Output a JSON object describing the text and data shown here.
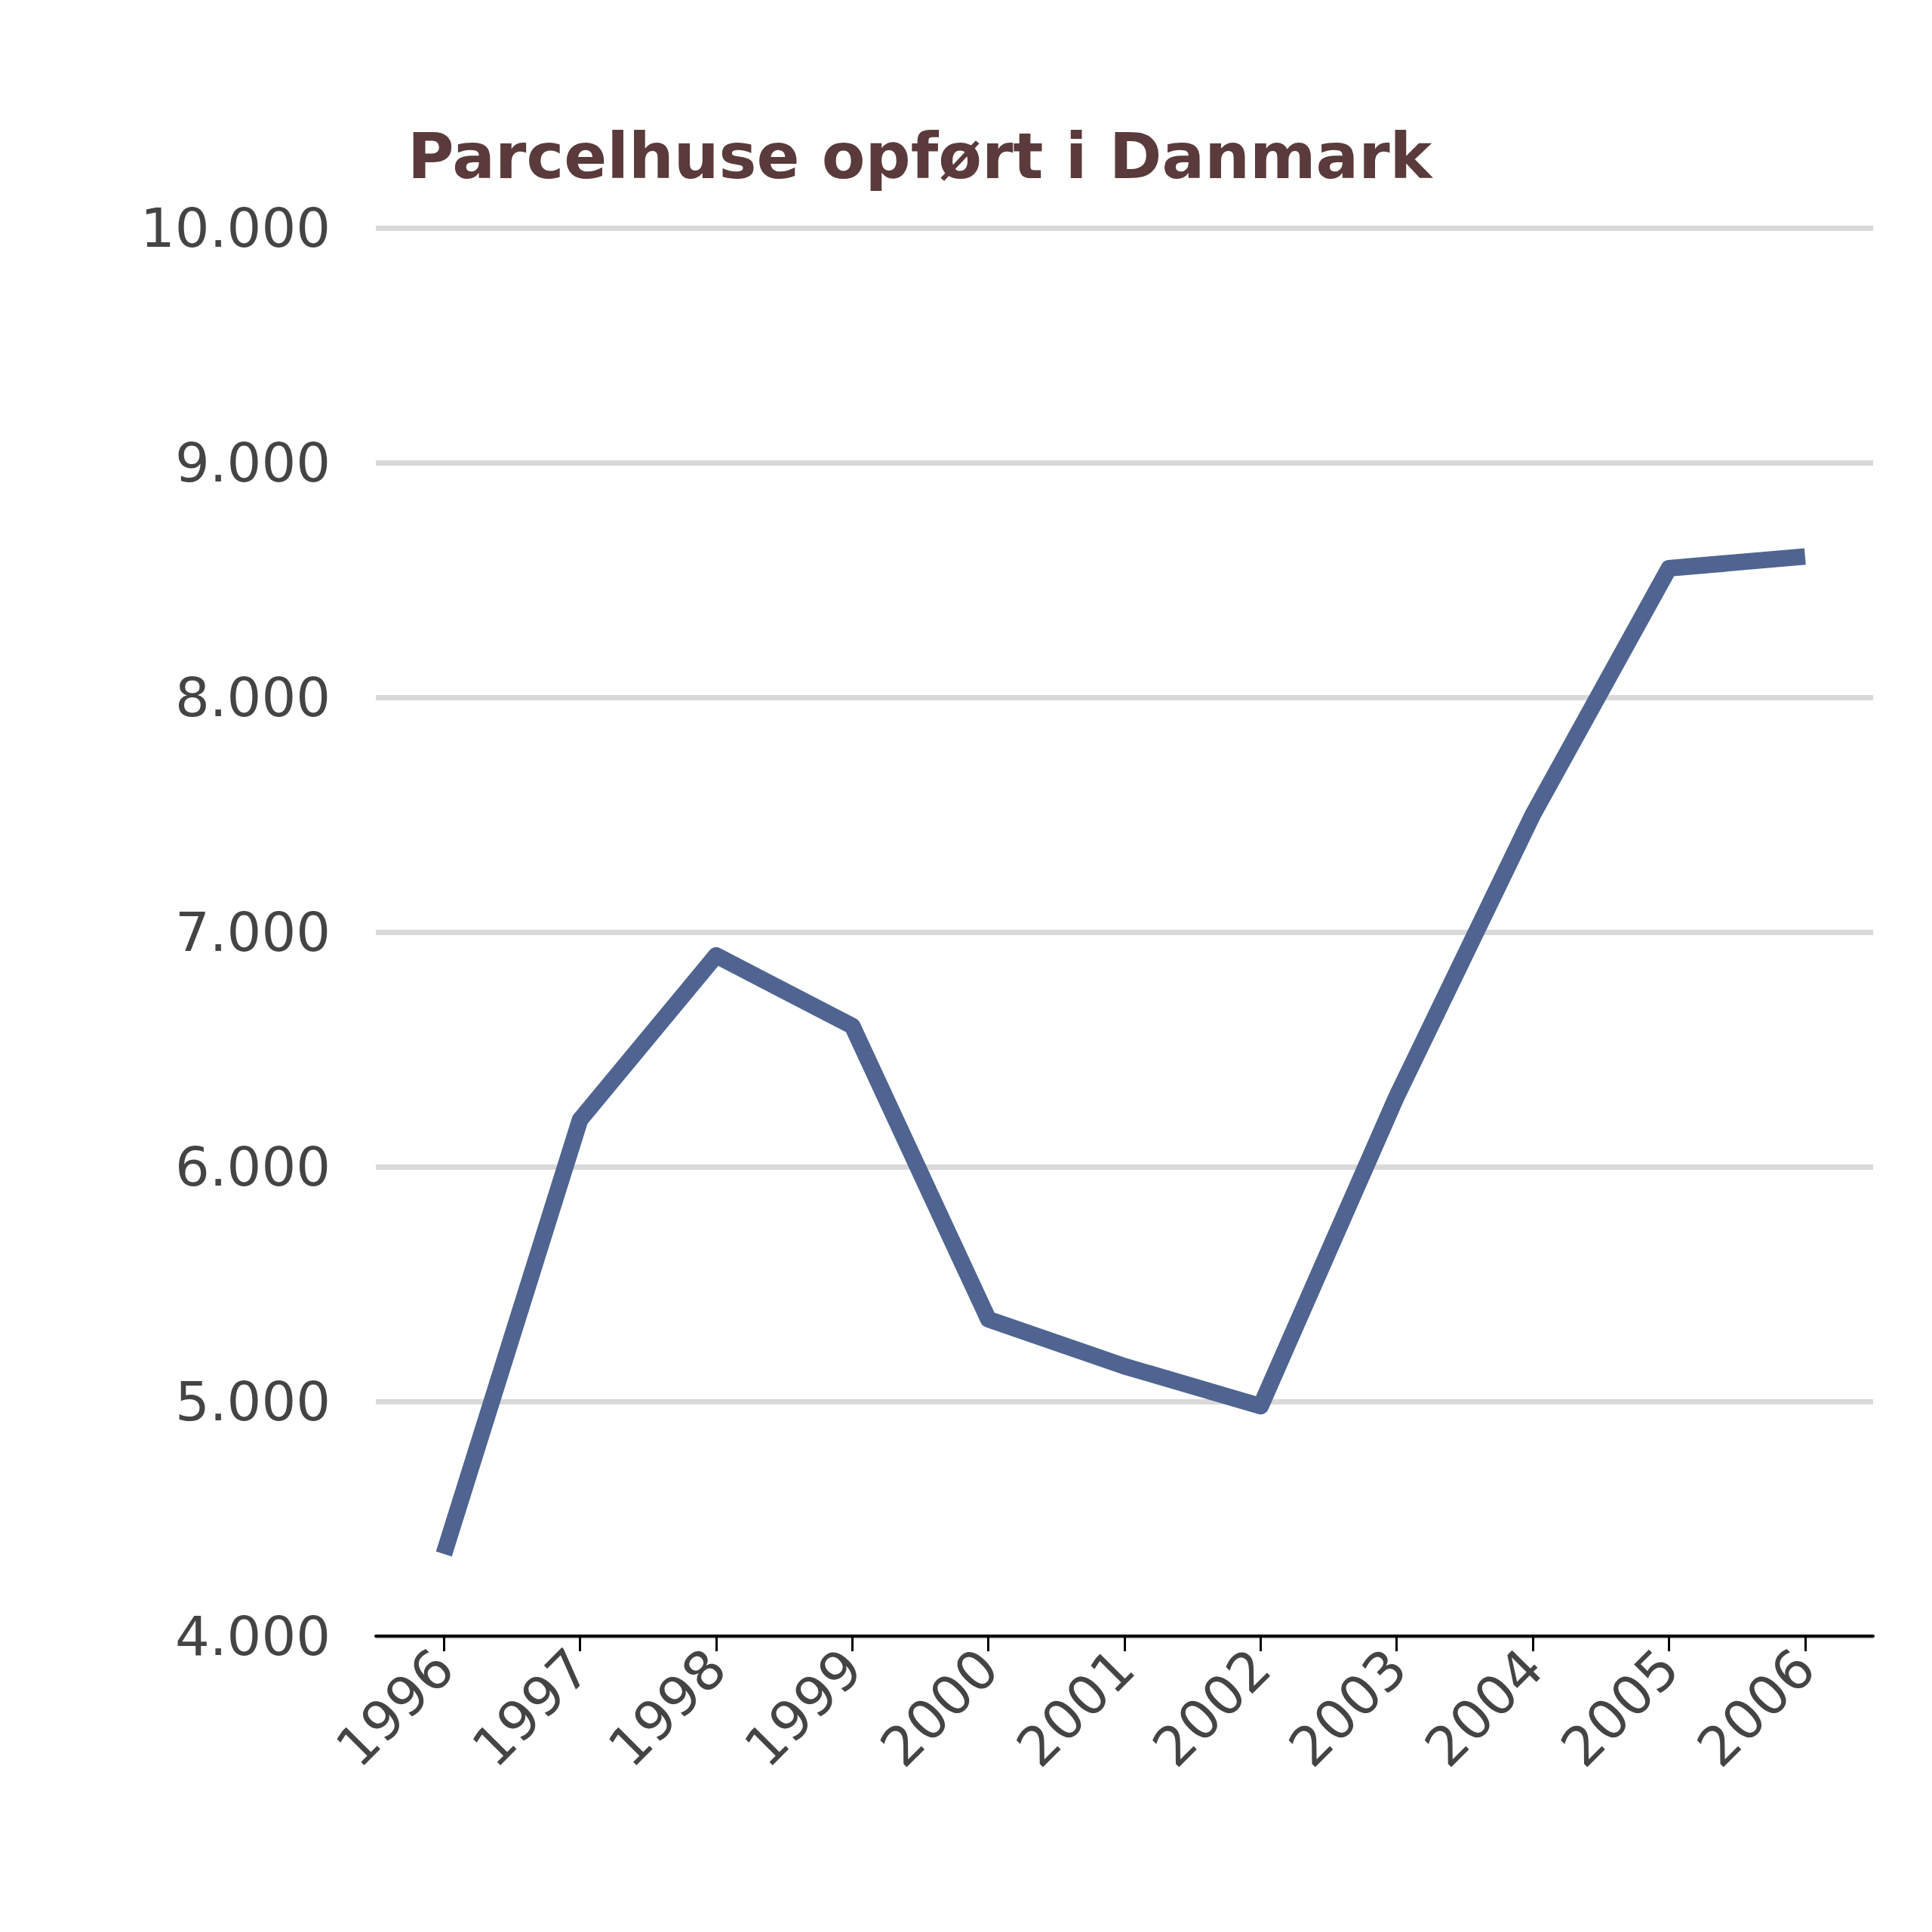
{
  "chart_data": {
    "type": "line",
    "title": "Parcelhuse opført i Danmark",
    "categories": [
      "1996",
      "1997",
      "1998",
      "1999",
      "2000",
      "2001",
      "2002",
      "2003",
      "2004",
      "2005",
      "2006"
    ],
    "series": [
      {
        "color": "#4f6491",
        "values": [
          4350,
          6200,
          6900,
          6600,
          5350,
          5150,
          4980,
          6300,
          7500,
          8550,
          8600
        ]
      }
    ],
    "ylim": [
      4000,
      10000
    ],
    "yticks": [
      {
        "value": 4000,
        "label": "4.000"
      },
      {
        "value": 5000,
        "label": "5.000"
      },
      {
        "value": 6000,
        "label": "6.000"
      },
      {
        "value": 7000,
        "label": "7.000"
      },
      {
        "value": 8000,
        "label": "8.000"
      },
      {
        "value": 9000,
        "label": "9.000"
      },
      {
        "value": 10000,
        "label": "10.000"
      }
    ],
    "grid": "y",
    "marker": "none",
    "line_style": "solid"
  }
}
